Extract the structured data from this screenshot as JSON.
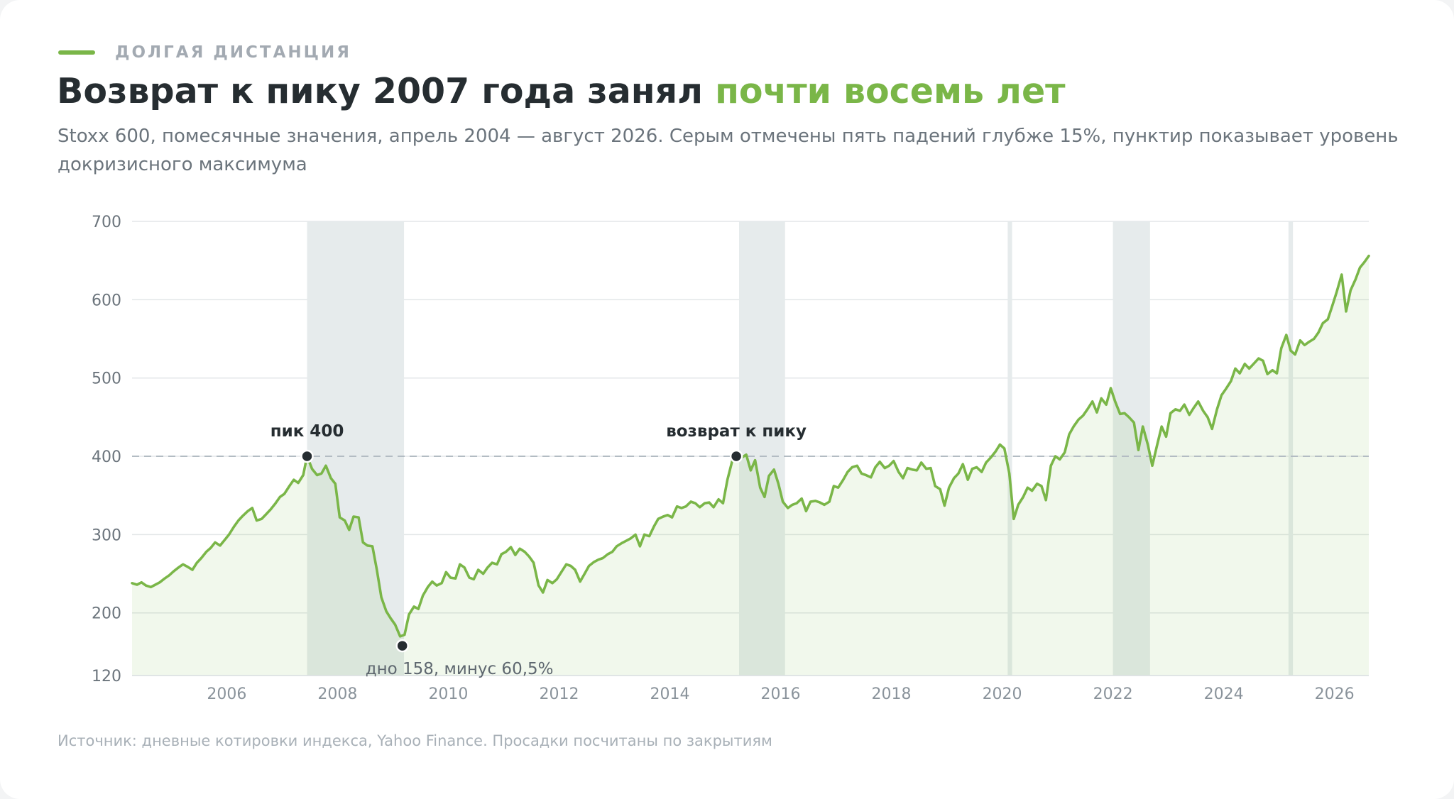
{
  "kicker": "ДОЛГАЯ ДИСТАНЦИЯ",
  "title": {
    "main": "Возврат к пику 2007 года занял ",
    "highlight": "почти восемь лет"
  },
  "subtitle": "Stoxx 600, помесячные значения, апрель 2004 — август 2026. Серым отмечены пять падений глубже 15%, пунктир показывает уровень докризисного максимума",
  "source": "Источник: дневные котировки индекса, Yahoo Finance. Просадки посчитаны по закрытиям",
  "colors": {
    "line": "#7ab648",
    "area": "#f1f7ea",
    "shade": "#e6ebec",
    "grid": "#e3e6e8",
    "reference": "#b3bcc3",
    "marker": "#262d31",
    "accent": "#7ab648"
  },
  "chart_data": {
    "type": "area",
    "xlabel": "",
    "ylabel": "",
    "xlim": [
      2004.29,
      2026.62
    ],
    "ylim": [
      120,
      700
    ],
    "y_ticks": [
      120,
      200,
      300,
      400,
      500,
      600,
      700
    ],
    "x_ticks": [
      2006,
      2008,
      2010,
      2012,
      2014,
      2016,
      2018,
      2020,
      2022,
      2024,
      2026
    ],
    "grid": true,
    "reference_line": {
      "value": 400
    },
    "drawdowns": [
      {
        "start": 2007.45,
        "end": 2009.2
      },
      {
        "start": 2015.25,
        "end": 2016.08
      },
      {
        "start": 2020.1,
        "end": 2020.18
      },
      {
        "start": 2022.0,
        "end": 2022.67
      },
      {
        "start": 2025.17,
        "end": 2025.25
      }
    ],
    "annotations": [
      {
        "x": 2007.45,
        "y": 400,
        "label": "пик 400",
        "position": "above"
      },
      {
        "x": 2009.17,
        "y": 158,
        "label": "дно 158, минус 60,5%",
        "position": "below"
      },
      {
        "x": 2015.2,
        "y": 400,
        "label": "возврат к пику",
        "position": "above"
      }
    ],
    "series": [
      {
        "points": [
          [
            2004.29,
            238
          ],
          [
            2004.38,
            236
          ],
          [
            2004.46,
            239
          ],
          [
            2004.54,
            235
          ],
          [
            2004.63,
            233
          ],
          [
            2004.71,
            236
          ],
          [
            2004.79,
            239
          ],
          [
            2004.88,
            244
          ],
          [
            2004.96,
            248
          ],
          [
            2005.04,
            253
          ],
          [
            2005.13,
            258
          ],
          [
            2005.21,
            262
          ],
          [
            2005.29,
            259
          ],
          [
            2005.38,
            255
          ],
          [
            2005.46,
            264
          ],
          [
            2005.54,
            270
          ],
          [
            2005.63,
            278
          ],
          [
            2005.71,
            283
          ],
          [
            2005.79,
            290
          ],
          [
            2005.88,
            286
          ],
          [
            2005.96,
            293
          ],
          [
            2006.04,
            300
          ],
          [
            2006.13,
            310
          ],
          [
            2006.21,
            318
          ],
          [
            2006.29,
            324
          ],
          [
            2006.38,
            330
          ],
          [
            2006.46,
            334
          ],
          [
            2006.54,
            318
          ],
          [
            2006.63,
            320
          ],
          [
            2006.71,
            326
          ],
          [
            2006.79,
            332
          ],
          [
            2006.88,
            340
          ],
          [
            2006.96,
            348
          ],
          [
            2007.04,
            352
          ],
          [
            2007.13,
            362
          ],
          [
            2007.21,
            370
          ],
          [
            2007.29,
            366
          ],
          [
            2007.38,
            376
          ],
          [
            2007.45,
            400
          ],
          [
            2007.54,
            384
          ],
          [
            2007.63,
            376
          ],
          [
            2007.71,
            378
          ],
          [
            2007.79,
            388
          ],
          [
            2007.88,
            372
          ],
          [
            2007.96,
            365
          ],
          [
            2008.04,
            322
          ],
          [
            2008.13,
            318
          ],
          [
            2008.21,
            306
          ],
          [
            2008.29,
            323
          ],
          [
            2008.38,
            322
          ],
          [
            2008.46,
            290
          ],
          [
            2008.54,
            286
          ],
          [
            2008.63,
            285
          ],
          [
            2008.71,
            255
          ],
          [
            2008.79,
            220
          ],
          [
            2008.88,
            202
          ],
          [
            2008.96,
            193
          ],
          [
            2009.04,
            185
          ],
          [
            2009.13,
            170
          ],
          [
            2009.21,
            172
          ],
          [
            2009.29,
            198
          ],
          [
            2009.38,
            208
          ],
          [
            2009.46,
            205
          ],
          [
            2009.54,
            222
          ],
          [
            2009.63,
            233
          ],
          [
            2009.71,
            240
          ],
          [
            2009.79,
            235
          ],
          [
            2009.88,
            238
          ],
          [
            2009.96,
            252
          ],
          [
            2010.04,
            245
          ],
          [
            2010.13,
            244
          ],
          [
            2010.21,
            262
          ],
          [
            2010.29,
            258
          ],
          [
            2010.38,
            245
          ],
          [
            2010.46,
            243
          ],
          [
            2010.54,
            255
          ],
          [
            2010.63,
            250
          ],
          [
            2010.71,
            258
          ],
          [
            2010.79,
            264
          ],
          [
            2010.88,
            262
          ],
          [
            2010.96,
            275
          ],
          [
            2011.04,
            278
          ],
          [
            2011.13,
            284
          ],
          [
            2011.21,
            274
          ],
          [
            2011.29,
            282
          ],
          [
            2011.38,
            278
          ],
          [
            2011.46,
            272
          ],
          [
            2011.54,
            264
          ],
          [
            2011.63,
            235
          ],
          [
            2011.71,
            226
          ],
          [
            2011.79,
            242
          ],
          [
            2011.88,
            238
          ],
          [
            2011.96,
            243
          ],
          [
            2012.04,
            252
          ],
          [
            2012.13,
            262
          ],
          [
            2012.21,
            260
          ],
          [
            2012.29,
            255
          ],
          [
            2012.38,
            240
          ],
          [
            2012.46,
            250
          ],
          [
            2012.54,
            260
          ],
          [
            2012.63,
            265
          ],
          [
            2012.71,
            268
          ],
          [
            2012.79,
            270
          ],
          [
            2012.88,
            275
          ],
          [
            2012.96,
            278
          ],
          [
            2013.04,
            285
          ],
          [
            2013.13,
            289
          ],
          [
            2013.21,
            292
          ],
          [
            2013.29,
            295
          ],
          [
            2013.38,
            300
          ],
          [
            2013.46,
            285
          ],
          [
            2013.54,
            300
          ],
          [
            2013.63,
            298
          ],
          [
            2013.71,
            310
          ],
          [
            2013.79,
            320
          ],
          [
            2013.88,
            323
          ],
          [
            2013.96,
            325
          ],
          [
            2014.04,
            322
          ],
          [
            2014.13,
            336
          ],
          [
            2014.21,
            334
          ],
          [
            2014.29,
            336
          ],
          [
            2014.38,
            342
          ],
          [
            2014.46,
            340
          ],
          [
            2014.54,
            335
          ],
          [
            2014.63,
            340
          ],
          [
            2014.71,
            341
          ],
          [
            2014.79,
            335
          ],
          [
            2014.88,
            345
          ],
          [
            2014.96,
            340
          ],
          [
            2015.04,
            370
          ],
          [
            2015.13,
            395
          ],
          [
            2015.2,
            400
          ],
          [
            2015.29,
            398
          ],
          [
            2015.38,
            402
          ],
          [
            2015.46,
            382
          ],
          [
            2015.54,
            395
          ],
          [
            2015.63,
            360
          ],
          [
            2015.71,
            348
          ],
          [
            2015.79,
            375
          ],
          [
            2015.88,
            383
          ],
          [
            2015.96,
            365
          ],
          [
            2016.04,
            342
          ],
          [
            2016.13,
            334
          ],
          [
            2016.21,
            338
          ],
          [
            2016.29,
            340
          ],
          [
            2016.38,
            346
          ],
          [
            2016.46,
            330
          ],
          [
            2016.54,
            342
          ],
          [
            2016.63,
            343
          ],
          [
            2016.71,
            341
          ],
          [
            2016.79,
            338
          ],
          [
            2016.88,
            342
          ],
          [
            2016.96,
            362
          ],
          [
            2017.04,
            360
          ],
          [
            2017.13,
            370
          ],
          [
            2017.21,
            380
          ],
          [
            2017.29,
            386
          ],
          [
            2017.38,
            388
          ],
          [
            2017.46,
            378
          ],
          [
            2017.54,
            376
          ],
          [
            2017.63,
            373
          ],
          [
            2017.71,
            386
          ],
          [
            2017.79,
            393
          ],
          [
            2017.88,
            385
          ],
          [
            2017.96,
            388
          ],
          [
            2018.04,
            394
          ],
          [
            2018.13,
            380
          ],
          [
            2018.21,
            372
          ],
          [
            2018.29,
            385
          ],
          [
            2018.38,
            383
          ],
          [
            2018.46,
            382
          ],
          [
            2018.54,
            392
          ],
          [
            2018.63,
            384
          ],
          [
            2018.71,
            385
          ],
          [
            2018.79,
            362
          ],
          [
            2018.88,
            358
          ],
          [
            2018.96,
            337
          ],
          [
            2019.04,
            360
          ],
          [
            2019.13,
            372
          ],
          [
            2019.21,
            378
          ],
          [
            2019.29,
            390
          ],
          [
            2019.38,
            370
          ],
          [
            2019.46,
            384
          ],
          [
            2019.54,
            386
          ],
          [
            2019.63,
            380
          ],
          [
            2019.71,
            392
          ],
          [
            2019.79,
            398
          ],
          [
            2019.88,
            406
          ],
          [
            2019.96,
            415
          ],
          [
            2020.04,
            410
          ],
          [
            2020.13,
            378
          ],
          [
            2020.21,
            320
          ],
          [
            2020.29,
            338
          ],
          [
            2020.38,
            348
          ],
          [
            2020.46,
            360
          ],
          [
            2020.54,
            356
          ],
          [
            2020.63,
            365
          ],
          [
            2020.71,
            362
          ],
          [
            2020.79,
            344
          ],
          [
            2020.88,
            388
          ],
          [
            2020.96,
            400
          ],
          [
            2021.04,
            396
          ],
          [
            2021.13,
            405
          ],
          [
            2021.21,
            428
          ],
          [
            2021.29,
            438
          ],
          [
            2021.38,
            447
          ],
          [
            2021.46,
            452
          ],
          [
            2021.54,
            460
          ],
          [
            2021.63,
            470
          ],
          [
            2021.71,
            456
          ],
          [
            2021.79,
            474
          ],
          [
            2021.88,
            466
          ],
          [
            2021.96,
            487
          ],
          [
            2022.04,
            470
          ],
          [
            2022.13,
            454
          ],
          [
            2022.21,
            455
          ],
          [
            2022.29,
            450
          ],
          [
            2022.38,
            443
          ],
          [
            2022.46,
            408
          ],
          [
            2022.54,
            438
          ],
          [
            2022.63,
            415
          ],
          [
            2022.71,
            388
          ],
          [
            2022.79,
            412
          ],
          [
            2022.88,
            438
          ],
          [
            2022.96,
            425
          ],
          [
            2023.04,
            455
          ],
          [
            2023.13,
            460
          ],
          [
            2023.21,
            458
          ],
          [
            2023.29,
            466
          ],
          [
            2023.38,
            453
          ],
          [
            2023.46,
            462
          ],
          [
            2023.54,
            470
          ],
          [
            2023.63,
            458
          ],
          [
            2023.71,
            450
          ],
          [
            2023.79,
            435
          ],
          [
            2023.88,
            460
          ],
          [
            2023.96,
            478
          ],
          [
            2024.04,
            486
          ],
          [
            2024.13,
            496
          ],
          [
            2024.21,
            512
          ],
          [
            2024.29,
            506
          ],
          [
            2024.38,
            518
          ],
          [
            2024.46,
            512
          ],
          [
            2024.54,
            518
          ],
          [
            2024.63,
            525
          ],
          [
            2024.71,
            522
          ],
          [
            2024.79,
            505
          ],
          [
            2024.88,
            510
          ],
          [
            2024.96,
            506
          ],
          [
            2025.04,
            538
          ],
          [
            2025.13,
            555
          ],
          [
            2025.21,
            535
          ],
          [
            2025.29,
            530
          ],
          [
            2025.38,
            548
          ],
          [
            2025.46,
            542
          ],
          [
            2025.54,
            546
          ],
          [
            2025.63,
            550
          ],
          [
            2025.71,
            558
          ],
          [
            2025.79,
            570
          ],
          [
            2025.88,
            575
          ],
          [
            2025.96,
            592
          ],
          [
            2026.04,
            610
          ],
          [
            2026.13,
            632
          ],
          [
            2026.21,
            585
          ],
          [
            2026.29,
            612
          ],
          [
            2026.38,
            626
          ],
          [
            2026.46,
            641
          ],
          [
            2026.54,
            648
          ],
          [
            2026.62,
            656
          ]
        ]
      }
    ]
  }
}
